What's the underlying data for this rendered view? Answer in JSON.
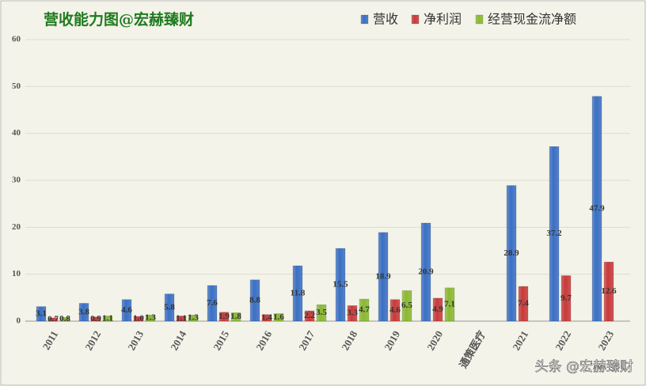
{
  "chart_data": {
    "type": "bar",
    "title": "营收能力图@宏赫臻财",
    "categories": [
      "2011",
      "2012",
      "2013",
      "2014",
      "2015",
      "2016",
      "2017",
      "2018",
      "2019",
      "2020",
      "通策医疗",
      "2021",
      "2022",
      "2023"
    ],
    "series": [
      {
        "name": "营收",
        "color": "#3a6fc4",
        "values": [
          3.1,
          3.8,
          4.6,
          5.8,
          7.6,
          8.8,
          11.8,
          15.5,
          18.9,
          20.9,
          null,
          28.9,
          37.2,
          47.9
        ]
      },
      {
        "name": "净利润",
        "color": "#c83a3a",
        "values": [
          0.7,
          0.9,
          1.0,
          1.1,
          1.9,
          1.4,
          2.2,
          3.3,
          4.6,
          4.9,
          null,
          7.4,
          9.7,
          12.6
        ],
        "value_labels": [
          "0.7",
          "0.9",
          "1.0",
          "1.1",
          "1.9",
          "1.4",
          "2.2",
          "3.3",
          "4.6",
          "4.9",
          null,
          "7.4",
          "9.7",
          "12.6"
        ]
      },
      {
        "name": "经营现金流净额",
        "color": "#8ab832",
        "values": [
          0.8,
          1.1,
          1.3,
          1.3,
          1.8,
          1.6,
          3.5,
          4.7,
          6.5,
          7.1,
          null,
          null,
          null,
          null
        ]
      }
    ],
    "ylim": [
      0,
      60
    ],
    "yticks": [
      0,
      10,
      20,
      30,
      40,
      50,
      60
    ],
    "grid": true,
    "legend": "top-right"
  },
  "watermark": "头条 @宏赫臻财"
}
